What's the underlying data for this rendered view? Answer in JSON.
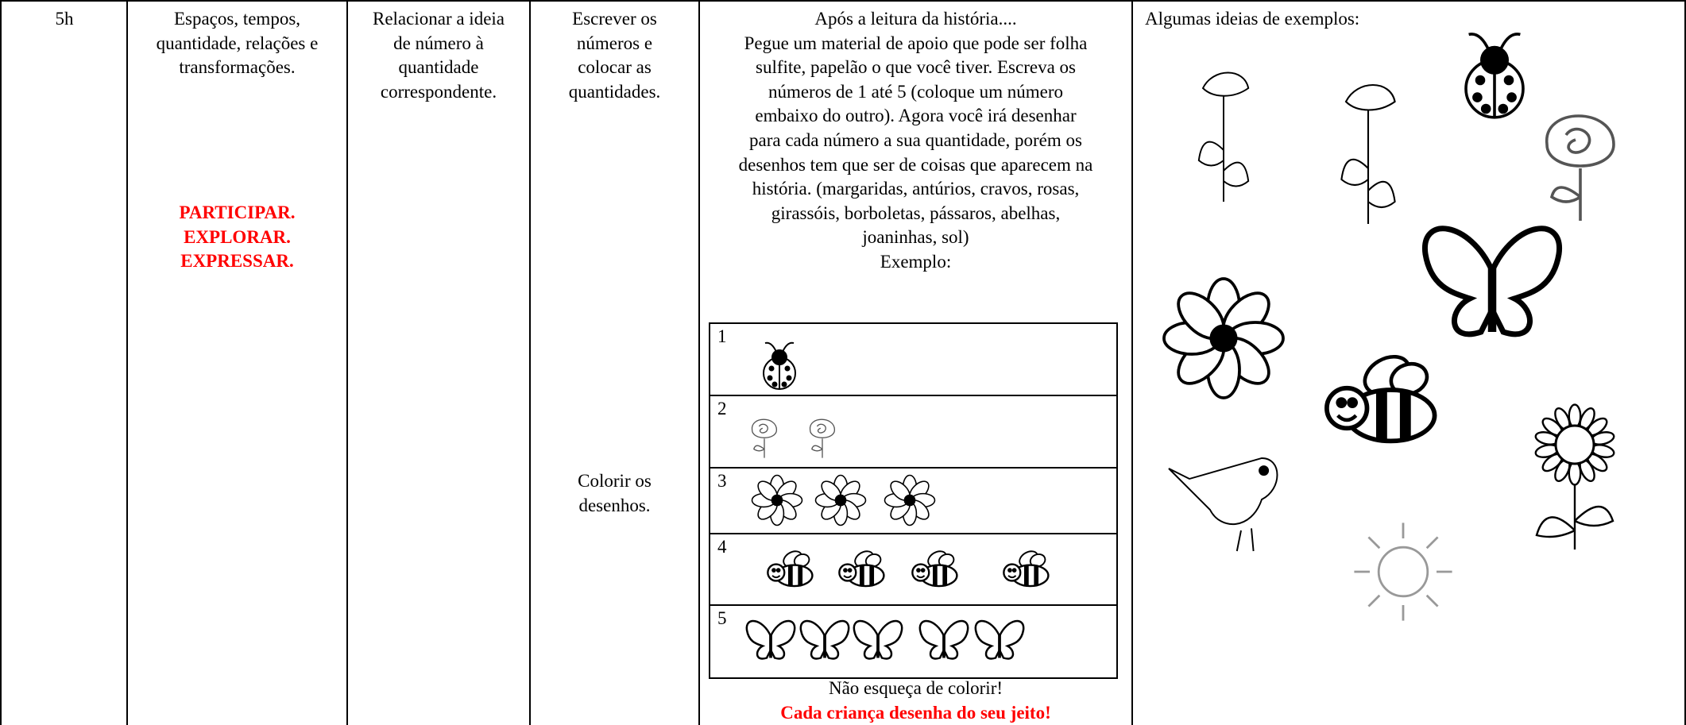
{
  "time": "5h",
  "field": [
    "Espaços, tempos,",
    "quantidade, relações e",
    "transformações."
  ],
  "rights": [
    "PARTICIPAR.",
    "EXPLORAR.",
    "EXPRESSAR."
  ],
  "objective": [
    "Relacionar a ideia",
    "de número à",
    "quantidade",
    "correspondente."
  ],
  "procedures": [
    "Escrever os",
    "números e",
    "colocar as",
    "quantidades."
  ],
  "procedures_coloring": [
    "Colorir os",
    "desenhos."
  ],
  "activity": [
    "Após a leitura da história....",
    "Pegue um material de apoio que pode ser folha",
    "sulfite, papelão o que você tiver. Escreva os",
    "números de 1 até 5 (coloque um número",
    "embaixo do outro). Agora você irá desenhar",
    "para cada número a sua quantidade, porém os",
    "desenhos tem que ser de coisas que aparecem na",
    "história. (margaridas, antúrios, cravos, rosas,",
    "girassóis, borboletas, pássaros, abelhas,",
    "joaninhas, sol)",
    "Exemplo:"
  ],
  "example_rows": [
    "1",
    "2",
    "3",
    "4",
    "5"
  ],
  "reminder": "Não esqueça de colorir!",
  "closing": "Cada criança desenha do seu jeito!",
  "examples_title": "Algumas ideias de exemplos:"
}
